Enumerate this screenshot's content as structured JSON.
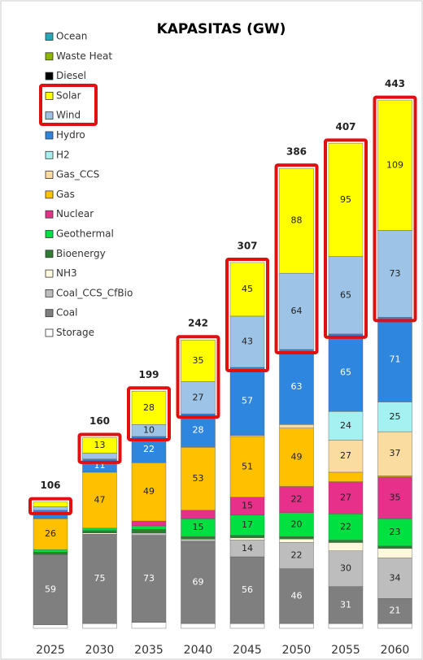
{
  "chart_data": {
    "type": "bar",
    "stacked": true,
    "title": "KAPASITAS (GW)",
    "categories": [
      "2025",
      "2030",
      "2035",
      "2040",
      "2045",
      "2050",
      "2055",
      "2060"
    ],
    "totals": [
      106,
      160,
      199,
      242,
      307,
      386,
      407,
      443
    ],
    "ylim": [
      0,
      470
    ],
    "series": [
      {
        "name": "Ocean",
        "color": "#2aa6b8",
        "values": [
          0,
          0,
          0,
          0,
          0,
          0,
          0,
          0
        ]
      },
      {
        "name": "Waste Heat",
        "color": "#8db600",
        "values": [
          0,
          0,
          0,
          0,
          0,
          0,
          0,
          0
        ]
      },
      {
        "name": "Diesel",
        "color": "#000000",
        "values": [
          0,
          0,
          0,
          0,
          0,
          0,
          0,
          0
        ]
      },
      {
        "name": "Solar",
        "color": "#ffff00",
        "values": [
          4,
          13,
          28,
          35,
          45,
          88,
          95,
          109
        ]
      },
      {
        "name": "Wind",
        "color": "#9dc3e6",
        "values": [
          3,
          5,
          10,
          27,
          43,
          64,
          65,
          73
        ]
      },
      {
        "name": "Hydro",
        "color": "#2e86de",
        "values": [
          7,
          11,
          22,
          28,
          57,
          63,
          65,
          71
        ]
      },
      {
        "name": "H2",
        "color": "#a5f0f0",
        "values": [
          0,
          0,
          0,
          0,
          0,
          0,
          24,
          25
        ]
      },
      {
        "name": "Gas_CCS",
        "color": "#fbdca0",
        "values": [
          0,
          0,
          0,
          0,
          1,
          3,
          27,
          37
        ]
      },
      {
        "name": "Gas",
        "color": "#ffc000",
        "values": [
          26,
          47,
          49,
          53,
          51,
          49,
          8,
          1
        ]
      },
      {
        "name": "Nuclear",
        "color": "#e6308a",
        "values": [
          0,
          0,
          4,
          7,
          15,
          22,
          27,
          35
        ]
      },
      {
        "name": "Geothermal",
        "color": "#00e040",
        "values": [
          2,
          2,
          3,
          15,
          17,
          20,
          22,
          23
        ]
      },
      {
        "name": "Bioenergy",
        "color": "#2e7d32",
        "values": [
          2,
          2,
          3,
          2,
          2,
          2,
          2,
          2
        ]
      },
      {
        "name": "NH3",
        "color": "#fff8dc",
        "values": [
          0,
          1,
          0,
          0,
          2,
          3,
          7,
          8
        ]
      },
      {
        "name": "Coal_CCS_CfBio",
        "color": "#bdbdbd",
        "values": [
          0,
          0,
          2,
          2,
          14,
          22,
          30,
          34
        ]
      },
      {
        "name": "Coal",
        "color": "#7f7f7f",
        "values": [
          59,
          75,
          73,
          69,
          56,
          46,
          31,
          21
        ]
      },
      {
        "name": "Storage",
        "color": "#ffffff",
        "values": [
          3,
          4,
          5,
          4,
          4,
          4,
          4,
          4
        ]
      }
    ]
  }
}
